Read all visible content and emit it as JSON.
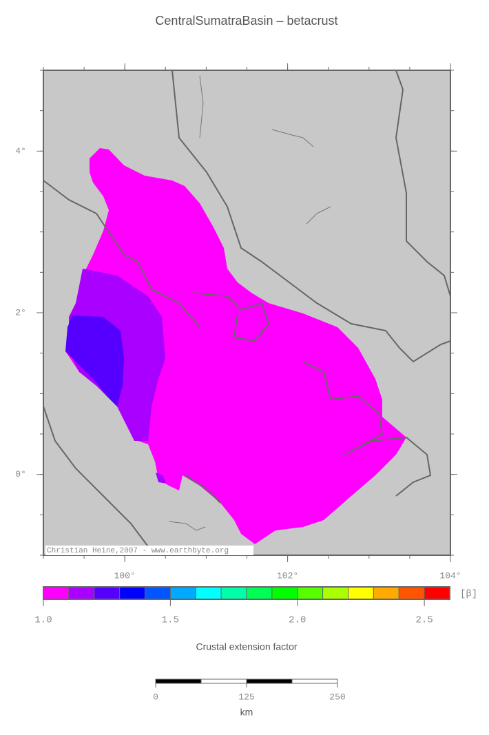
{
  "map": {
    "title": "CentralSumatraBasin – betacrust",
    "lonlim": [
      99,
      104
    ],
    "latlim": [
      -1,
      5
    ],
    "lon_ticks": [
      {
        "value": 100,
        "label": "100°"
      },
      {
        "value": 102,
        "label": "102°"
      },
      {
        "value": 104,
        "label": "104°"
      }
    ],
    "lat_ticks": [
      {
        "value": 0,
        "label": "0°"
      },
      {
        "value": 2,
        "label": "2°"
      },
      {
        "value": 4,
        "label": "4°"
      }
    ],
    "attribution": "Christian Heine,2007 - www.earthbyte.org",
    "colorbar": {
      "range": [
        1.0,
        2.6
      ],
      "colors": [
        "#ff00ff",
        "#aa00ff",
        "#5500ff",
        "#0000ff",
        "#0055ff",
        "#00aaff",
        "#00ffff",
        "#00ffaa",
        "#00ff55",
        "#00ff00",
        "#55ff00",
        "#aaff00",
        "#ffff00",
        "#ffaa00",
        "#ff5500",
        "#ff0000"
      ],
      "ticks": [
        {
          "value": 1.0,
          "label": "1.0"
        },
        {
          "value": 1.5,
          "label": "1.5"
        },
        {
          "value": 2.0,
          "label": "2.0"
        },
        {
          "value": 2.5,
          "label": "2.5"
        }
      ],
      "unit": "[β]",
      "label": "Crustal extension factor"
    },
    "scalebar": {
      "range": [
        0,
        250
      ],
      "ticks": [
        0,
        125,
        250
      ],
      "unit": "km"
    }
  }
}
